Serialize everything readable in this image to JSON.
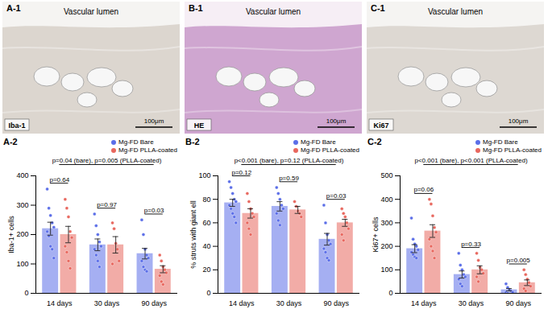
{
  "image_panels": [
    {
      "panel": "A-1",
      "region": "Vascular lumen",
      "stain": "Iba-1",
      "scale_bar": "100μm"
    },
    {
      "panel": "B-1",
      "region": "Vascular lumen",
      "stain": "HE",
      "scale_bar": "100μm"
    },
    {
      "panel": "C-1",
      "region": "Vascular lumen",
      "stain": "Ki67",
      "scale_bar": "100μm"
    }
  ],
  "chart_data": [
    {
      "type": "bar",
      "panel": "A-2",
      "ylabel": "Iba-1+ cells",
      "categories": [
        "14 days",
        "30 days",
        "90 days"
      ],
      "ylim": [
        0,
        400
      ],
      "yticks": [
        0,
        100,
        200,
        300,
        400
      ],
      "legend": "top-right",
      "series": [
        {
          "name": "Mg-FD Bare",
          "color": "#5b6ee8",
          "values": [
            220,
            165,
            135
          ],
          "errors": [
            22,
            20,
            18
          ],
          "points": [
            [
              355,
              290,
              265,
              240,
              225,
              210,
              195,
              160,
              150,
              120
            ],
            [
              270,
              230,
              200,
              175,
              160,
              150,
              130,
              110,
              90
            ],
            [
              250,
              200,
              150,
              130,
              120,
              110,
              90,
              80,
              75
            ]
          ]
        },
        {
          "name": "Mg-FD PLLA-coated",
          "color": "#e8675e",
          "values": [
            200,
            165,
            82
          ],
          "errors": [
            28,
            28,
            12
          ],
          "points": [
            [
              320,
              290,
              260,
              210,
              190,
              160,
              140,
              110,
              85
            ],
            [
              240,
              220,
              170,
              150,
              110,
              100
            ],
            [
              130,
              110,
              90,
              80,
              70,
              60,
              40,
              30
            ]
          ]
        }
      ],
      "annotations": [
        "p=0.64",
        "p=0.97",
        "p=0.03"
      ],
      "trend_annotation": "p=0.04 (bare), p=0.005 (PLLA-coated)"
    },
    {
      "type": "bar",
      "panel": "B-2",
      "ylabel": "% struts with giant ell",
      "categories": [
        "14 days",
        "30 days",
        "90 days"
      ],
      "ylim": [
        0,
        100
      ],
      "yticks": [
        0,
        20,
        40,
        60,
        80,
        100
      ],
      "legend": "top-right",
      "series": [
        {
          "name": "Mg-FD Bare",
          "color": "#5b6ee8",
          "values": [
            77,
            74,
            46
          ],
          "errors": [
            3,
            4,
            5
          ],
          "points": [
            [
              95,
              90,
              85,
              80,
              78,
              75,
              72,
              68,
              65,
              60
            ],
            [
              90,
              85,
              80,
              75,
              72,
              68,
              62,
              58
            ],
            [
              75,
              60,
              50,
              45,
              42,
              38,
              35,
              30,
              28
            ]
          ]
        },
        {
          "name": "Mg-FD PLLA-coated",
          "color": "#e8675e",
          "values": [
            68,
            71,
            60
          ],
          "errors": [
            4,
            3,
            3
          ],
          "points": [
            [
              85,
              78,
              72,
              68,
              65,
              60,
              55,
              50
            ],
            [
              78,
              74,
              70,
              68,
              65
            ],
            [
              72,
              68,
              65,
              60,
              55,
              50,
              45
            ]
          ]
        }
      ],
      "annotations": [
        "p=0.12",
        "p=0.59",
        "p=0.03"
      ],
      "trend_annotation": "p<0.001 (bare), p=0.12 (PLLA-coated)"
    },
    {
      "type": "bar",
      "panel": "C-2",
      "ylabel": "Ki67+ cells",
      "categories": [
        "14 days",
        "30 days",
        "90 days"
      ],
      "ylim": [
        0,
        500
      ],
      "yticks": [
        0,
        100,
        200,
        300,
        400,
        500
      ],
      "legend": "top-right",
      "series": [
        {
          "name": "Mg-FD Bare",
          "color": "#5b6ee8",
          "values": [
            190,
            80,
            15
          ],
          "errors": [
            17,
            15,
            5
          ],
          "points": [
            [
              320,
              230,
              210,
              200,
              185,
              175,
              165,
              155,
              150
            ],
            [
              170,
              120,
              100,
              80,
              70,
              60,
              40,
              30
            ],
            [
              40,
              25,
              15,
              10,
              5,
              5,
              0
            ]
          ]
        },
        {
          "name": "Mg-FD PLLA-coated",
          "color": "#e8675e",
          "values": [
            265,
            100,
            45
          ],
          "errors": [
            27,
            17,
            12
          ],
          "points": [
            [
              400,
              380,
              330,
              280,
              260,
              230,
              200,
              180,
              150
            ],
            [
              170,
              140,
              110,
              100,
              85,
              70,
              50
            ],
            [
              100,
              80,
              60,
              45,
              30,
              20,
              10
            ]
          ]
        }
      ],
      "annotations": [
        "p=0.06",
        "p=0.33",
        "p=0.005"
      ],
      "trend_annotation": "p<0.001 (bare), p<0.001 (PLLA-coated)"
    }
  ]
}
